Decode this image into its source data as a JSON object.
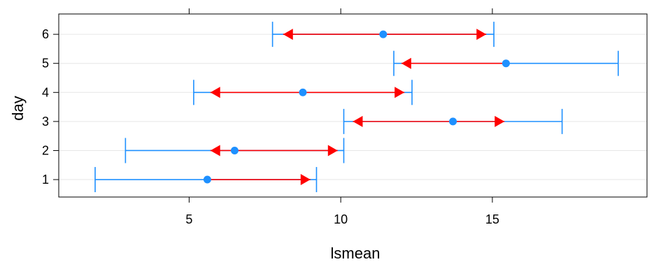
{
  "chart_data": {
    "type": "interval",
    "title": "",
    "xlabel": "lsmean",
    "ylabel": "day",
    "xlim": [
      0.7,
      20.1
    ],
    "ylim": [
      0.4,
      6.7
    ],
    "x_ticks": [
      5,
      10,
      15
    ],
    "y_ticks": [
      1,
      2,
      3,
      4,
      5,
      6
    ],
    "grid": "horizontal",
    "colors": {
      "ci": "#1E90FF",
      "comparison": "#FF0000",
      "point": "#1E90FF",
      "grid": "#E6E6E6",
      "frame": "#000000"
    },
    "series": [
      {
        "day": 1,
        "lsmean": 5.6,
        "ci_lower": 1.9,
        "ci_upper": 9.2,
        "cmp_lower": 5.6,
        "cmp_upper": 9.0
      },
      {
        "day": 2,
        "lsmean": 6.5,
        "ci_lower": 2.9,
        "ci_upper": 10.1,
        "cmp_lower": 5.7,
        "cmp_upper": 9.9
      },
      {
        "day": 3,
        "lsmean": 13.7,
        "ci_lower": 10.1,
        "ci_upper": 17.3,
        "cmp_lower": 10.4,
        "cmp_upper": 15.4
      },
      {
        "day": 4,
        "lsmean": 8.75,
        "ci_lower": 5.15,
        "ci_upper": 12.35,
        "cmp_lower": 5.7,
        "cmp_upper": 12.1
      },
      {
        "day": 5,
        "lsmean": 15.45,
        "ci_lower": 11.75,
        "ci_upper": 19.15,
        "cmp_lower": 12.0,
        "cmp_upper": 15.45
      },
      {
        "day": 6,
        "lsmean": 11.4,
        "ci_lower": 7.75,
        "ci_upper": 15.05,
        "cmp_lower": 8.1,
        "cmp_upper": 14.8
      }
    ]
  }
}
